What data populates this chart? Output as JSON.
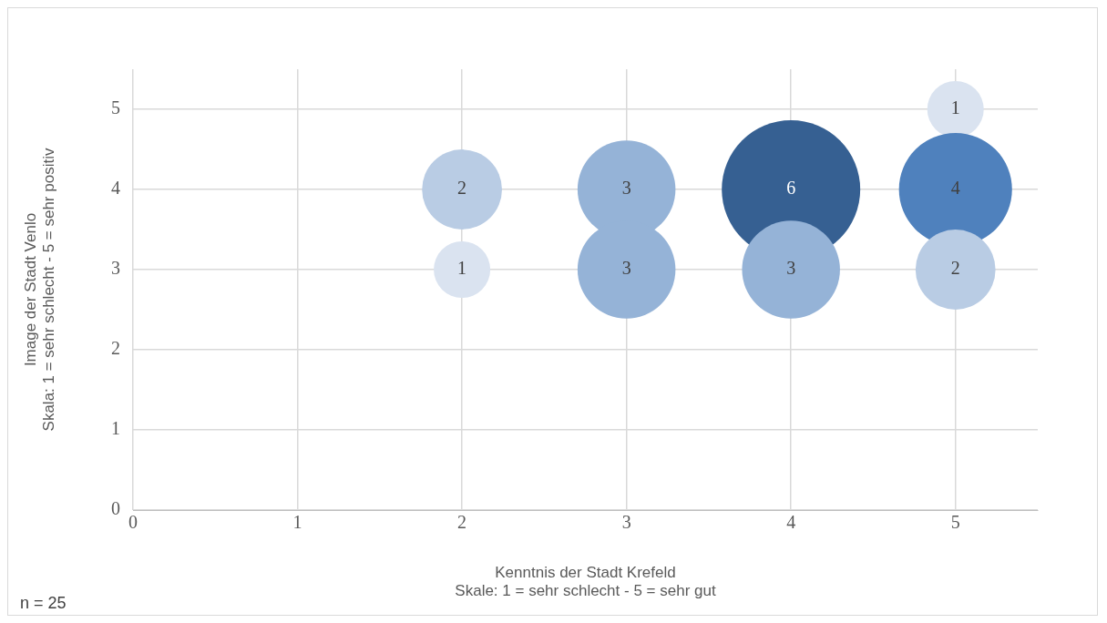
{
  "chart_data": {
    "type": "bubble",
    "xlabel": "Kenntnis der Stadt Krefeld\nSkale: 1 = sehr schlecht - 5 = sehr gut",
    "ylabel": "Image der Stadt Venlo\nSkala: 1 = sehr schlecht - 5 = sehr positiv",
    "x": [
      2,
      2,
      3,
      3,
      4,
      4,
      5,
      5,
      5
    ],
    "values": [
      4,
      3,
      4,
      3,
      4,
      3,
      5,
      4,
      3
    ],
    "sizes": [
      2,
      1,
      3,
      3,
      6,
      3,
      1,
      4,
      2
    ],
    "value_labels": [
      "2",
      "1",
      "3",
      "3",
      "6",
      "3",
      "1",
      "4",
      "2"
    ],
    "colors": [
      "#b9cce4",
      "#dae3f0",
      "#95b3d7",
      "#95b3d7",
      "#366092",
      "#95b3d7",
      "#dae3f0",
      "#4f81bd",
      "#b9cce4"
    ],
    "xlim": [
      0,
      5.5
    ],
    "xticks": [
      0,
      1,
      2,
      3,
      4,
      5
    ],
    "ylim": [
      0,
      5.5
    ],
    "yticks": [
      0,
      1,
      2,
      3,
      4,
      5
    ],
    "grid": true,
    "annotations": [
      "n = 25"
    ]
  }
}
